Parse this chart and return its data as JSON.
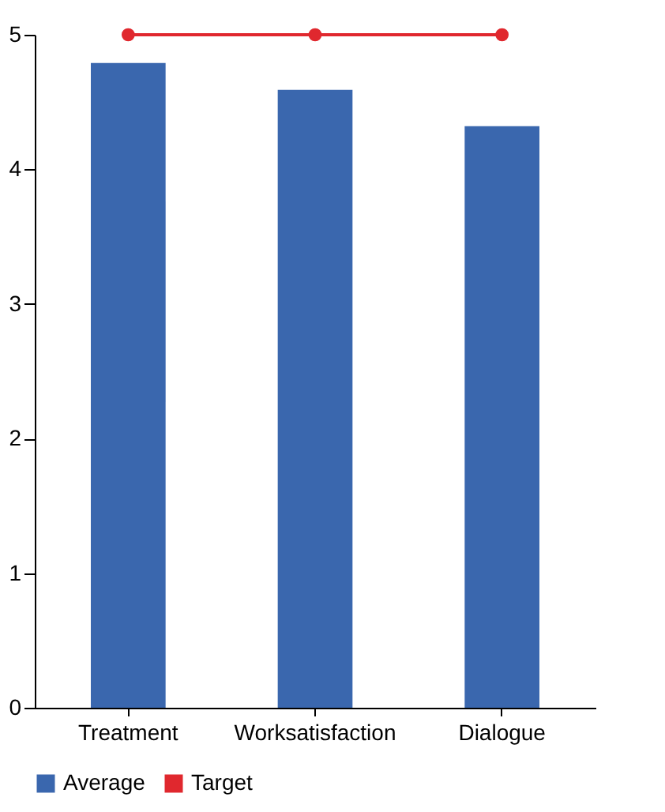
{
  "chart_data": {
    "type": "bar",
    "categories": [
      "Treatment",
      "Worksatisfaction",
      "Dialogue"
    ],
    "series": [
      {
        "name": "Average",
        "color": "#3a67ae",
        "values": [
          4.79,
          4.59,
          4.32
        ]
      },
      {
        "name": "Target",
        "type": "line",
        "color": "#e0282e",
        "marker": "circle",
        "line_style": "solid",
        "values": [
          5,
          5,
          5
        ]
      }
    ],
    "ylim": [
      0,
      5
    ],
    "yticks": [
      0,
      1,
      2,
      3,
      4,
      5
    ],
    "grid": false,
    "legend": "bottom"
  }
}
